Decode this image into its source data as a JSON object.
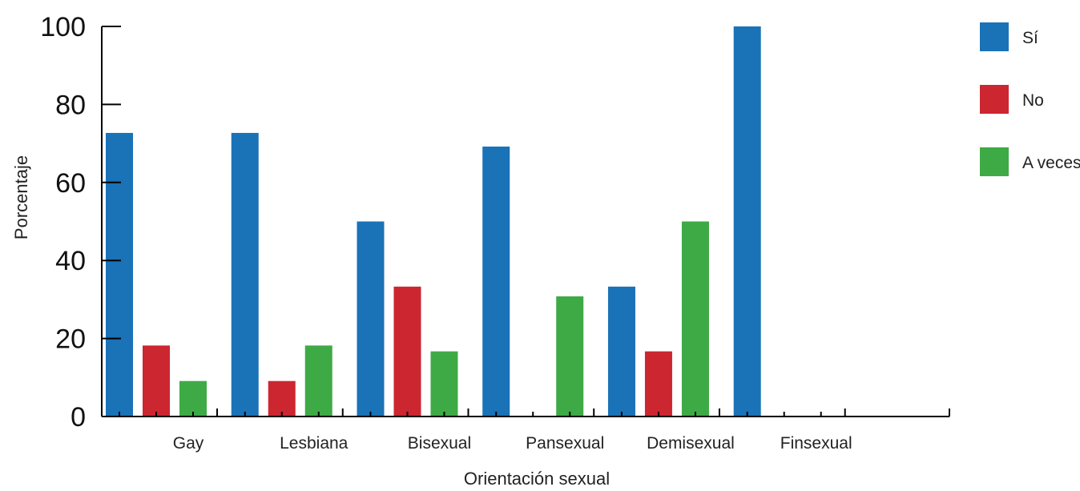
{
  "chart_data": {
    "type": "bar",
    "title": "",
    "xlabel": "Orientación sexual",
    "ylabel": "Porcentaje",
    "ylim": [
      0,
      100
    ],
    "yticks": [
      0,
      20,
      40,
      60,
      80,
      100
    ],
    "categories": [
      "Gay",
      "Lesbiana",
      "Bisexual",
      "Pansexual",
      "Demisexual",
      "Finsexual"
    ],
    "series": [
      {
        "name": "Sí",
        "color": "#1a72b7",
        "values": [
          72.7,
          72.7,
          50,
          69.2,
          33.3,
          100
        ]
      },
      {
        "name": "No",
        "color": "#cc2631",
        "values": [
          18.2,
          9.1,
          33.3,
          0,
          16.7,
          0
        ]
      },
      {
        "name": "A veces",
        "color": "#3eaa45",
        "values": [
          9.1,
          18.2,
          16.7,
          30.8,
          50,
          0
        ]
      }
    ],
    "legend_position": "right",
    "grid": false
  }
}
